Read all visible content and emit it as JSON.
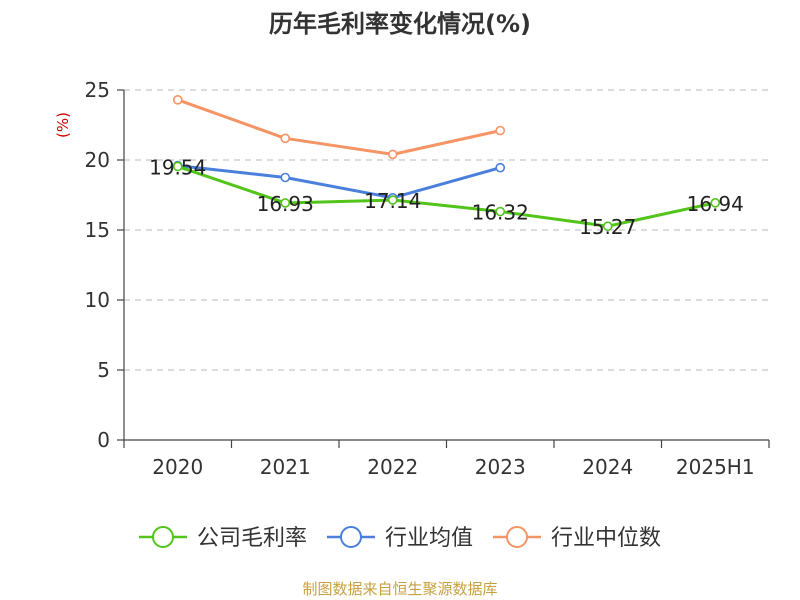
{
  "chart_data": {
    "type": "line",
    "title": "历年毛利率变化情况(%)",
    "ylabel": "(%)",
    "xlabel": "",
    "categories": [
      "2020",
      "2021",
      "2022",
      "2023",
      "2024",
      "2025H1"
    ],
    "ylim": [
      0,
      25
    ],
    "yticks": [
      "0",
      "5",
      "10",
      "15",
      "20",
      "25"
    ],
    "grid": "horizontal-dashed",
    "legend_position": "bottom",
    "series": [
      {
        "name": "公司毛利率",
        "color": "#52c41a",
        "values": [
          19.54,
          16.93,
          17.14,
          16.32,
          15.27,
          16.94
        ],
        "labels": [
          "19.54",
          "16.93",
          "17.14",
          "16.32",
          "15.27",
          "16.94"
        ]
      },
      {
        "name": "行业均值",
        "color": "#4a7fdb",
        "values": [
          19.6,
          18.75,
          17.3,
          19.45,
          null,
          null
        ]
      },
      {
        "name": "行业中位数",
        "color": "#f59464",
        "values": [
          24.3,
          21.55,
          20.4,
          22.1,
          null,
          null
        ]
      }
    ],
    "source": "制图数据来自恒生聚源数据库"
  }
}
